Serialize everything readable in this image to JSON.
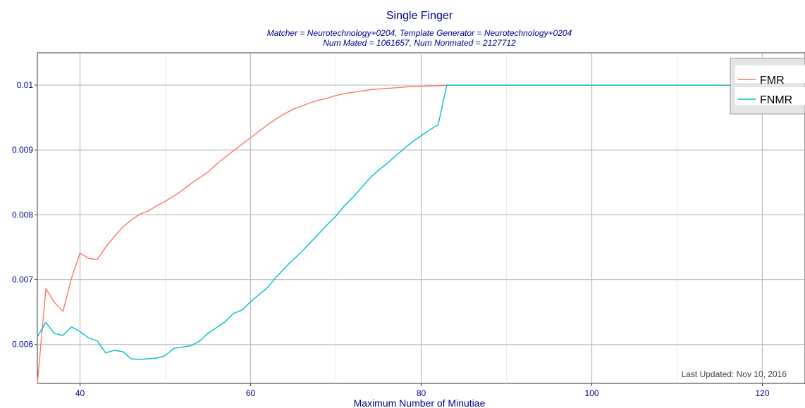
{
  "chart_data": {
    "type": "line",
    "title": "Single Finger",
    "subtitle_lines": [
      "Matcher = Neurotechnology+0204, Template Generator = Neurotechnology+0204",
      "Num Mated = 1061657, Num Nonmated = 2127712"
    ],
    "xlabel": "Maximum Number of Minutiae",
    "ylabel": "",
    "x_ticks": [
      40,
      60,
      80,
      100,
      120
    ],
    "y_ticks": [
      0.006,
      0.007,
      0.008,
      0.009,
      0.01
    ],
    "y_tick_labels": [
      "0.006",
      "0.007",
      "0.008",
      "0.009",
      "0.01"
    ],
    "xlim": [
      35,
      125
    ],
    "ylim": [
      0.0054,
      0.0105
    ],
    "grid": true,
    "legend_position": "top-right",
    "footnote": "Last Updated: Nov 10, 2016",
    "series": [
      {
        "name": "FMR",
        "color": "#f8766d",
        "points": [
          [
            35,
            0.0054
          ],
          [
            36,
            0.00686
          ],
          [
            37,
            0.00665
          ],
          [
            38,
            0.00651
          ],
          [
            39,
            0.00702
          ],
          [
            40,
            0.00741
          ],
          [
            41,
            0.00733
          ],
          [
            42,
            0.00731
          ],
          [
            43,
            0.0075
          ],
          [
            44,
            0.00766
          ],
          [
            45,
            0.00781
          ],
          [
            46,
            0.00792
          ],
          [
            47,
            0.00801
          ],
          [
            48,
            0.00806
          ],
          [
            49,
            0.00814
          ],
          [
            50,
            0.00821
          ],
          [
            51,
            0.00829
          ],
          [
            52,
            0.00838
          ],
          [
            53,
            0.00848
          ],
          [
            54,
            0.00857
          ],
          [
            55,
            0.00866
          ],
          [
            56,
            0.00878
          ],
          [
            57,
            0.00889
          ],
          [
            58,
            0.00899
          ],
          [
            59,
            0.00909
          ],
          [
            60,
            0.00919
          ],
          [
            61,
            0.00929
          ],
          [
            62,
            0.00939
          ],
          [
            63,
            0.00948
          ],
          [
            64,
            0.00956
          ],
          [
            65,
            0.00963
          ],
          [
            66,
            0.00968
          ],
          [
            67,
            0.00973
          ],
          [
            68,
            0.00977
          ],
          [
            69,
            0.0098
          ],
          [
            70,
            0.00984
          ],
          [
            71,
            0.00987
          ],
          [
            72,
            0.00989
          ],
          [
            73,
            0.00991
          ],
          [
            74,
            0.00993
          ],
          [
            75,
            0.00994
          ],
          [
            76,
            0.00995
          ],
          [
            77,
            0.00996
          ],
          [
            78,
            0.00997
          ],
          [
            79,
            0.00998
          ],
          [
            80,
            0.00998
          ],
          [
            81,
            0.00999
          ],
          [
            82,
            0.00999
          ],
          [
            83,
            0.01
          ],
          [
            90,
            0.01
          ],
          [
            100,
            0.01
          ],
          [
            110,
            0.01
          ],
          [
            120,
            0.01
          ]
        ]
      },
      {
        "name": "FNMR",
        "color": "#00bfc4",
        "points": [
          [
            35,
            0.00612
          ],
          [
            36,
            0.00634
          ],
          [
            37,
            0.00617
          ],
          [
            38,
            0.00614
          ],
          [
            39,
            0.00627
          ],
          [
            40,
            0.0062
          ],
          [
            41,
            0.0061
          ],
          [
            42,
            0.00606
          ],
          [
            43,
            0.00587
          ],
          [
            44,
            0.00591
          ],
          [
            45,
            0.00589
          ],
          [
            46,
            0.00578
          ],
          [
            47,
            0.00577
          ],
          [
            48,
            0.00578
          ],
          [
            49,
            0.00579
          ],
          [
            50,
            0.00583
          ],
          [
            51,
            0.00594
          ],
          [
            52,
            0.00596
          ],
          [
            53,
            0.00598
          ],
          [
            54,
            0.00605
          ],
          [
            55,
            0.00617
          ],
          [
            56,
            0.00626
          ],
          [
            57,
            0.00635
          ],
          [
            58,
            0.00648
          ],
          [
            59,
            0.00653
          ],
          [
            60,
            0.00666
          ],
          [
            61,
            0.00677
          ],
          [
            62,
            0.00688
          ],
          [
            63,
            0.00704
          ],
          [
            64,
            0.00718
          ],
          [
            65,
            0.00731
          ],
          [
            66,
            0.00743
          ],
          [
            67,
            0.00757
          ],
          [
            68,
            0.00771
          ],
          [
            69,
            0.00785
          ],
          [
            70,
            0.00798
          ],
          [
            71,
            0.00814
          ],
          [
            72,
            0.00827
          ],
          [
            73,
            0.00842
          ],
          [
            74,
            0.00857
          ],
          [
            75,
            0.00869
          ],
          [
            76,
            0.00879
          ],
          [
            77,
            0.00891
          ],
          [
            78,
            0.00902
          ],
          [
            79,
            0.00913
          ],
          [
            80,
            0.00922
          ],
          [
            81,
            0.00931
          ],
          [
            82,
            0.00939
          ],
          [
            83,
            0.01
          ],
          [
            90,
            0.01
          ],
          [
            100,
            0.01
          ],
          [
            110,
            0.01
          ],
          [
            120,
            0.01
          ]
        ]
      }
    ]
  }
}
